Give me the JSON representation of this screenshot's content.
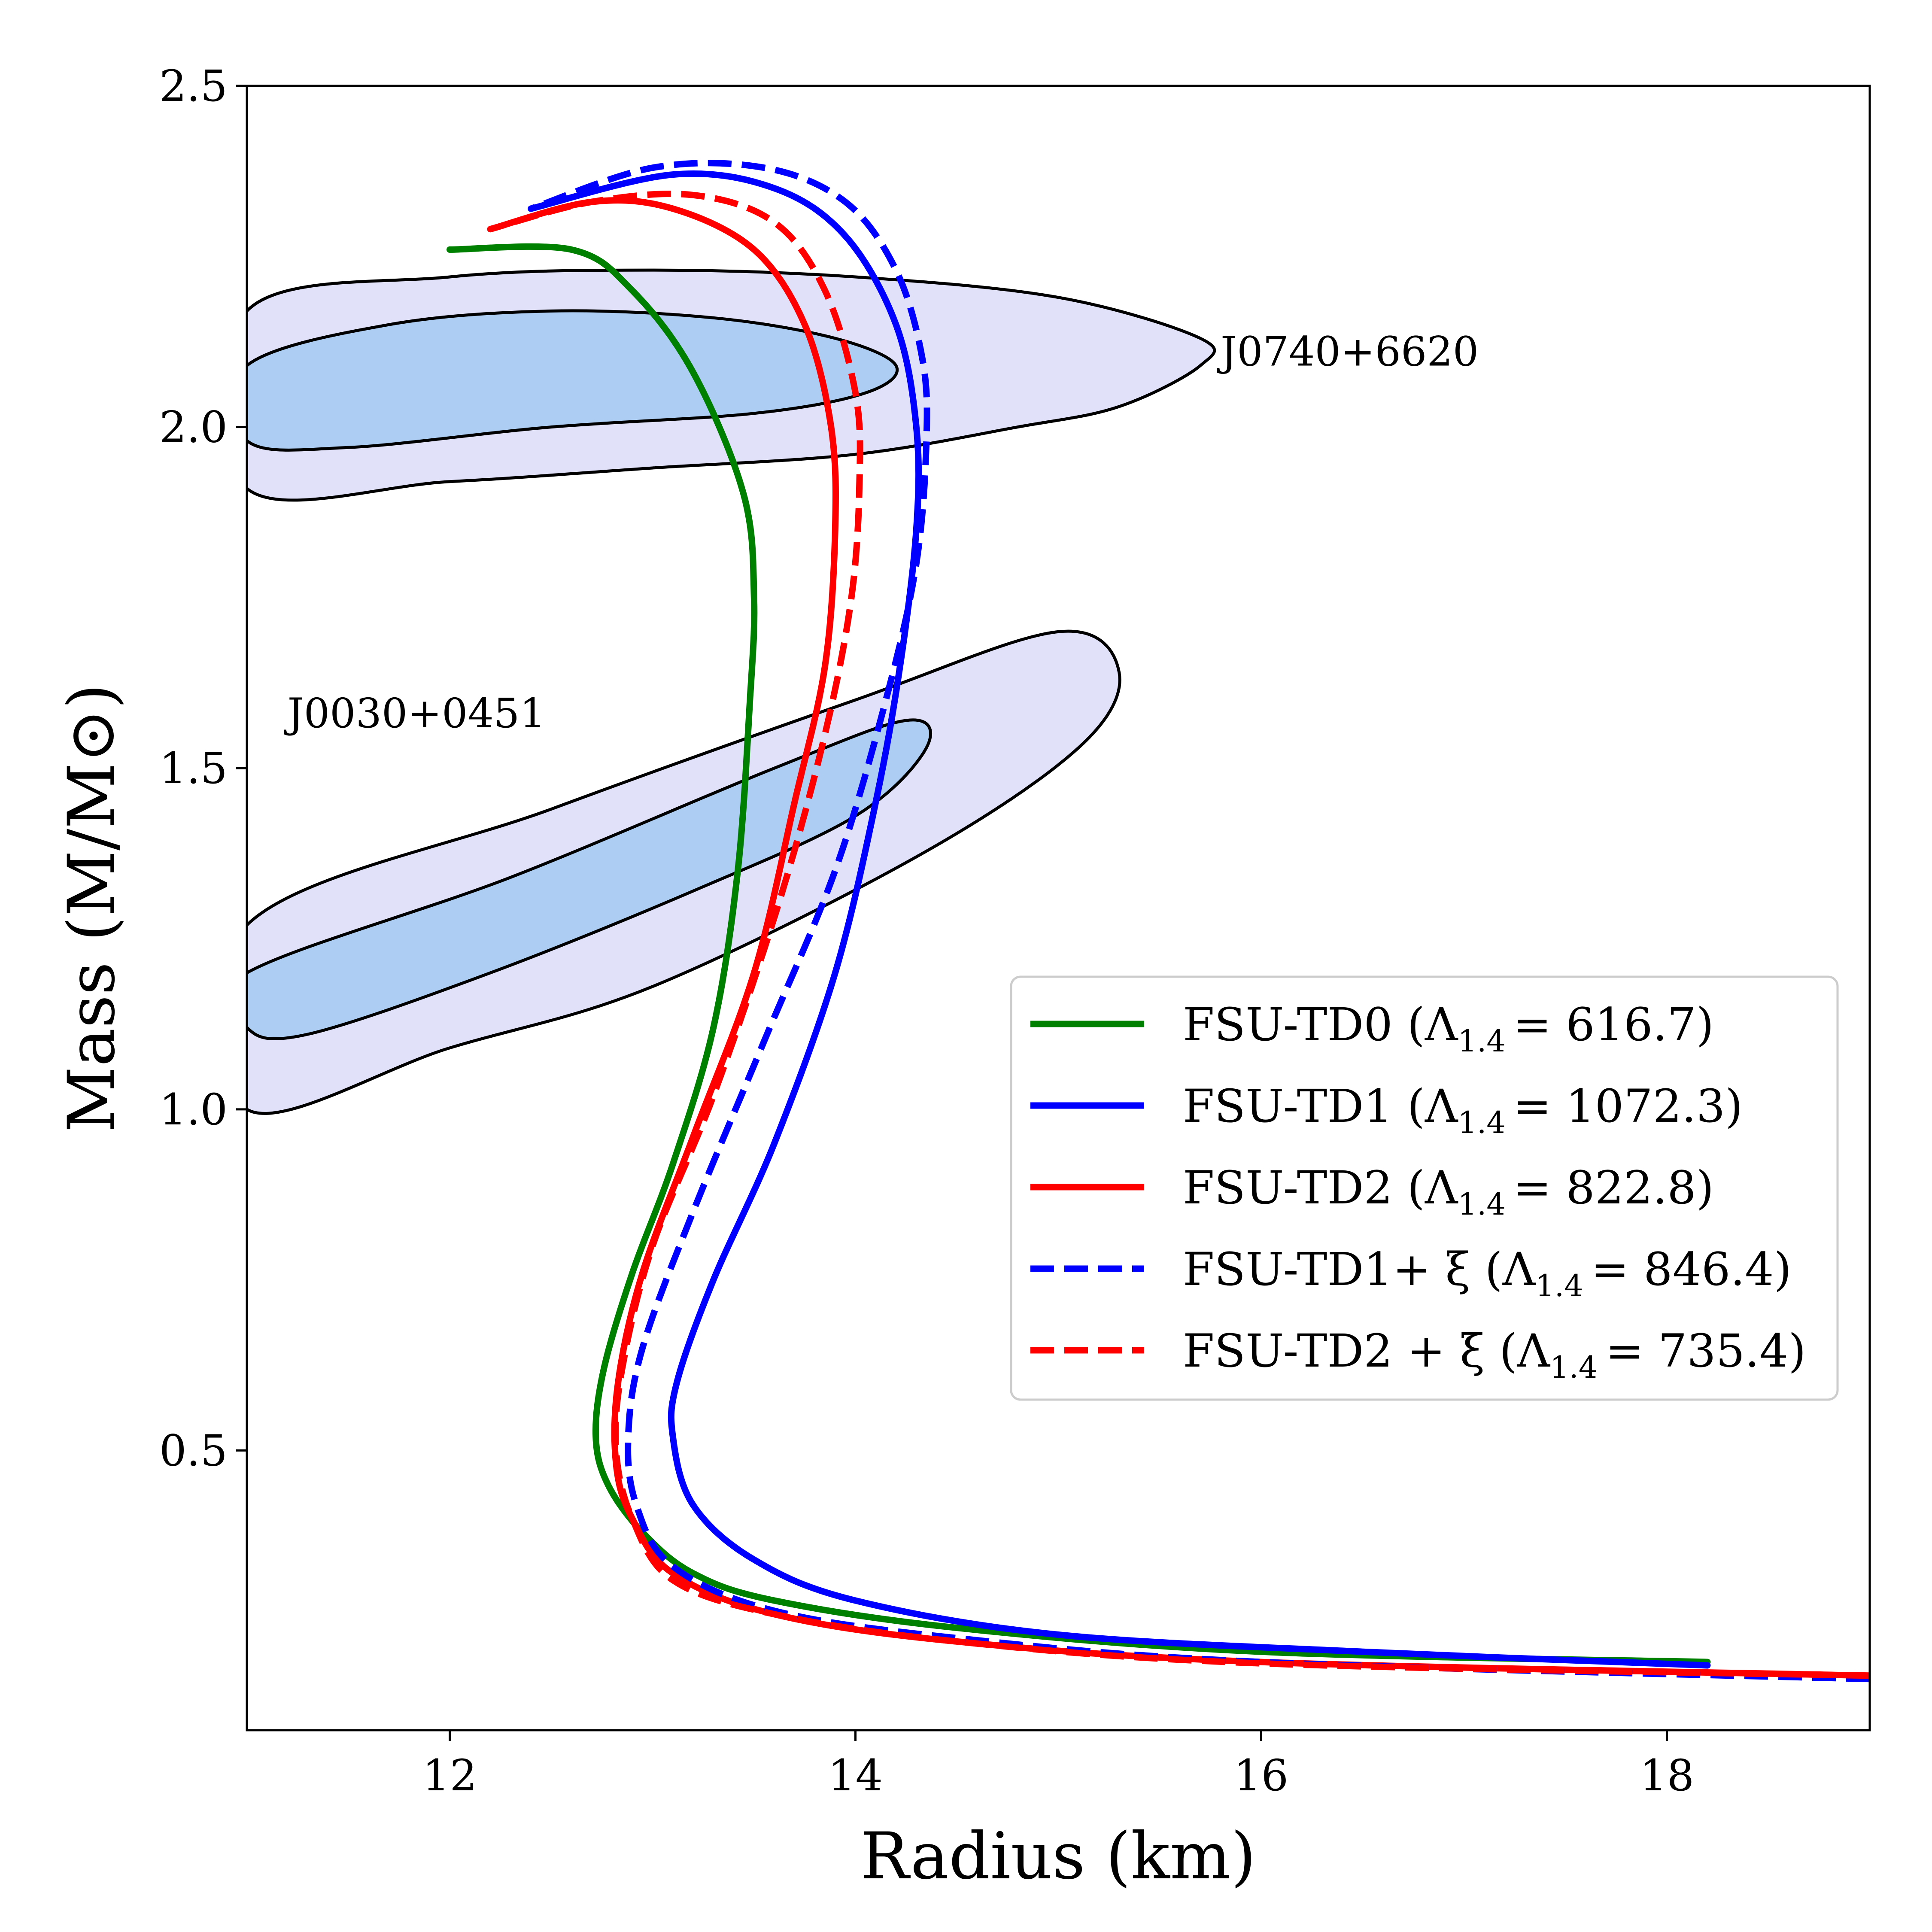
{
  "chart_data": {
    "type": "line",
    "xlabel": "Radius (km)",
    "ylabel": "Mass (M/M⊙)",
    "xlim": [
      11,
      19
    ],
    "ylim": [
      0.09,
      2.5
    ],
    "xticks": [
      12,
      14,
      16,
      18
    ],
    "yticks": [
      0.5,
      1.0,
      1.5,
      2.0,
      2.5
    ],
    "xtick_labels": [
      "12",
      "14",
      "16",
      "18"
    ],
    "ytick_labels": [
      "0.5",
      "1.0",
      "1.5",
      "2.0",
      "2.5"
    ],
    "legend_position": "center-right",
    "series": [
      {
        "name": "FSU-TD0 (Λ",
        "sub": "1.4",
        "value": "= 616.7)",
        "color": "#008000",
        "dash": false,
        "x": [
          18.2,
          16.0,
          14.5,
          13.6,
          13.2,
          12.95,
          12.78,
          12.72,
          12.76,
          12.9,
          13.1,
          13.3,
          13.42,
          13.48,
          13.5,
          13.45,
          13.2,
          12.9,
          12.6,
          12.0
        ],
        "y": [
          0.19,
          0.205,
          0.24,
          0.28,
          0.32,
          0.38,
          0.45,
          0.52,
          0.62,
          0.76,
          0.92,
          1.12,
          1.35,
          1.6,
          1.75,
          1.9,
          2.08,
          2.2,
          2.26,
          2.26
        ]
      },
      {
        "name": "FSU-TD1 (Λ",
        "sub": "1.4",
        "value": "= 1072.3)",
        "color": "#0000ff",
        "dash": false,
        "x": [
          18.2,
          16.5,
          15.0,
          14.0,
          13.5,
          13.2,
          13.1,
          13.12,
          13.3,
          13.6,
          13.9,
          14.1,
          14.22,
          14.3,
          14.3,
          14.2,
          13.95,
          13.6,
          13.1,
          12.4
        ],
        "y": [
          0.185,
          0.205,
          0.23,
          0.28,
          0.34,
          0.42,
          0.52,
          0.6,
          0.75,
          0.95,
          1.2,
          1.45,
          1.65,
          1.85,
          2.0,
          2.15,
          2.28,
          2.35,
          2.37,
          2.32
        ]
      },
      {
        "name": "FSU-TD2 (Λ",
        "sub": "1.4",
        "value": "= 822.8)",
        "color": "#ff0000",
        "dash": false,
        "x": [
          19.0,
          16.0,
          14.5,
          13.6,
          13.1,
          12.9,
          12.82,
          12.83,
          12.95,
          13.2,
          13.5,
          13.7,
          13.85,
          13.9,
          13.88,
          13.75,
          13.5,
          13.1,
          12.7,
          12.2
        ],
        "y": [
          0.17,
          0.19,
          0.22,
          0.26,
          0.32,
          0.4,
          0.48,
          0.6,
          0.76,
          0.96,
          1.2,
          1.45,
          1.65,
          1.85,
          2.0,
          2.15,
          2.26,
          2.32,
          2.33,
          2.29
        ]
      },
      {
        "name": "FSU-TD1+ ξ (Λ",
        "sub": "1.4",
        "value": "= 846.4)",
        "color": "#0000ff",
        "dash": true,
        "x": [
          19.0,
          16.0,
          14.5,
          13.6,
          13.1,
          12.92,
          12.88,
          12.95,
          13.2,
          13.55,
          13.9,
          14.15,
          14.3,
          14.35,
          14.33,
          14.2,
          13.95,
          13.55,
          13.0,
          12.4
        ],
        "y": [
          0.165,
          0.19,
          0.225,
          0.265,
          0.33,
          0.42,
          0.52,
          0.65,
          0.85,
          1.1,
          1.35,
          1.6,
          1.8,
          1.98,
          2.1,
          2.23,
          2.33,
          2.38,
          2.38,
          2.32
        ]
      },
      {
        "name": "FSU-TD2 + ξ (Λ",
        "sub": "1.4",
        "value": "= 735.4)",
        "color": "#ff0000",
        "dash": true,
        "x": [
          19.0,
          16.0,
          14.5,
          13.6,
          13.1,
          12.9,
          12.82,
          12.85,
          13.0,
          13.3,
          13.62,
          13.85,
          13.98,
          14.02,
          14.0,
          13.85,
          13.6,
          13.2,
          12.7,
          12.2
        ],
        "y": [
          0.17,
          0.188,
          0.22,
          0.26,
          0.31,
          0.4,
          0.5,
          0.62,
          0.8,
          1.02,
          1.3,
          1.55,
          1.75,
          1.92,
          2.05,
          2.2,
          2.3,
          2.34,
          2.33,
          2.29
        ]
      }
    ],
    "regions": [
      {
        "name": "J0740+6620",
        "outer": {
          "x": [
            11.0,
            12.0,
            13.0,
            14.0,
            15.0,
            15.7,
            15.7,
            15.3,
            14.8,
            14.0,
            13.0,
            12.0,
            11.0
          ],
          "y": [
            2.17,
            2.22,
            2.23,
            2.22,
            2.19,
            2.13,
            2.09,
            2.03,
            2.0,
            1.96,
            1.94,
            1.92,
            1.91
          ]
        },
        "inner": {
          "x": [
            11.0,
            11.7,
            12.5,
            13.3,
            13.9,
            14.2,
            14.05,
            13.5,
            12.5,
            11.5,
            11.0
          ],
          "y": [
            2.09,
            2.15,
            2.17,
            2.16,
            2.13,
            2.09,
            2.05,
            2.02,
            2.0,
            1.97,
            1.98
          ]
        }
      },
      {
        "name": "J0030+0451",
        "outer": {
          "x": [
            11.0,
            12.5,
            14.0,
            15.0,
            15.3,
            15.1,
            14.3,
            13.0,
            12.0,
            11.0
          ],
          "y": [
            1.27,
            1.44,
            1.6,
            1.7,
            1.64,
            1.53,
            1.37,
            1.18,
            1.09,
            1.0
          ]
        },
        "inner": {
          "x": [
            11.0,
            12.3,
            13.6,
            14.25,
            14.35,
            14.0,
            13.2,
            12.2,
            11.3,
            11.0
          ],
          "y": [
            1.2,
            1.34,
            1.5,
            1.57,
            1.53,
            1.43,
            1.32,
            1.2,
            1.11,
            1.12
          ]
        }
      }
    ],
    "annotations": [
      {
        "text": "J0740+6620",
        "x": 15.8,
        "y": 2.09
      },
      {
        "text": "J0030+0451",
        "x": 11.2,
        "y": 1.56
      }
    ]
  }
}
